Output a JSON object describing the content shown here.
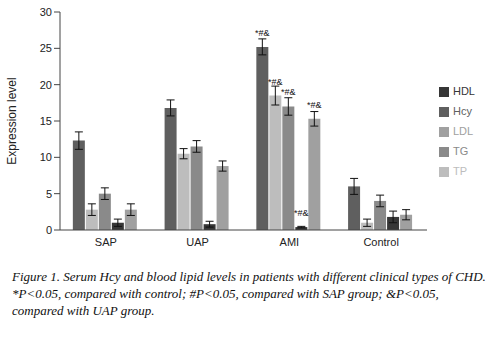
{
  "chart_data": {
    "type": "bar",
    "y_label": "Expression level",
    "caption": "Figure 1. Serum Hcy and blood lipid levels in patients with different clinical types of CHD. *P<0.05, compared with control; #P<0.05, compared with SAP group; &P<0.05, compared with UAP group.",
    "categories": [
      "SAP",
      "UAP",
      "AMI",
      "Control"
    ],
    "ylim": [
      0,
      30
    ],
    "yticks": [
      0,
      5,
      10,
      15,
      20,
      25,
      30
    ],
    "grid": false,
    "legend": "right",
    "series": [
      {
        "name": "Hcy",
        "color": "#5f5f5f",
        "values": [
          12.3,
          16.8,
          25.2,
          6.0
        ],
        "errors": [
          1.2,
          1.1,
          1.1,
          1.1
        ],
        "annotations": [
          null,
          null,
          "*#&",
          null
        ]
      },
      {
        "name": "TP",
        "color": "#bdbdbd",
        "values": [
          2.8,
          10.5,
          18.5,
          1.0
        ],
        "errors": [
          0.8,
          0.7,
          1.3,
          0.5
        ],
        "annotations": [
          null,
          null,
          "*#&",
          null
        ]
      },
      {
        "name": "TG",
        "color": "#8a8a8a",
        "values": [
          5.0,
          11.5,
          17.0,
          4.0
        ],
        "errors": [
          0.8,
          0.8,
          1.2,
          0.8
        ],
        "annotations": [
          null,
          null,
          "*#&",
          null
        ]
      },
      {
        "name": "HDL",
        "color": "#363636",
        "values": [
          1.0,
          0.8,
          0.4,
          1.8
        ],
        "errors": [
          0.5,
          0.4,
          0.1,
          0.8
        ],
        "annotations": [
          null,
          null,
          "*#&",
          null
        ]
      },
      {
        "name": "LDL",
        "color": "#a0a0a0",
        "values": [
          2.8,
          8.8,
          15.3,
          2.1
        ],
        "errors": [
          0.8,
          0.7,
          1.0,
          0.7
        ],
        "annotations": [
          null,
          null,
          "*#&",
          null
        ]
      }
    ]
  }
}
